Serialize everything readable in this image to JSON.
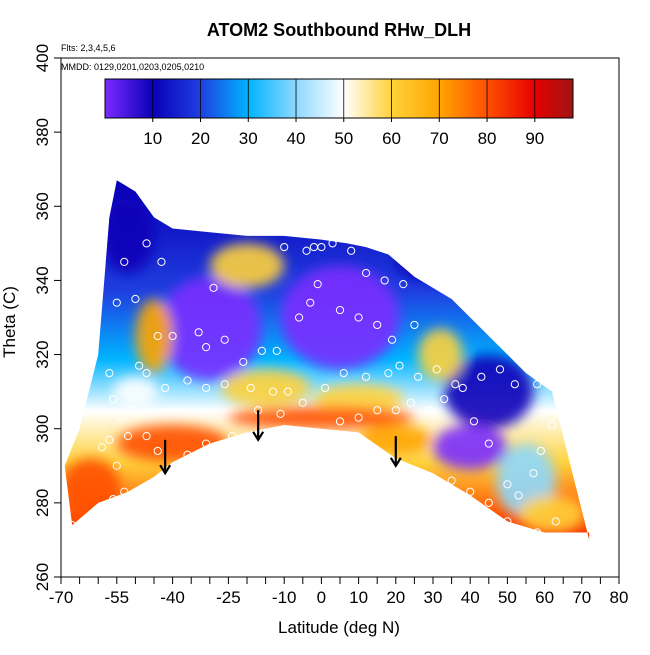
{
  "chart_data": {
    "type": "heatmap",
    "title": "ATOM2 Southbound RHw_DLH",
    "subtitle_flights": "Flts: 2,3,4,5,6",
    "subtitle_dates": "MMDD: 0129,0201,0203,0205,0210",
    "xlabel": "Latitude (deg N)",
    "ylabel": "Theta (C)",
    "xlim": [
      -70,
      80
    ],
    "ylim": [
      260,
      400
    ],
    "x_ticks": [
      -70,
      -55,
      -40,
      -25,
      -10,
      0,
      10,
      20,
      30,
      40,
      50,
      60,
      70,
      80
    ],
    "x_minor_ticks": [
      -65,
      -60,
      -50,
      -45,
      -35,
      -30,
      -20,
      -15,
      -5,
      5,
      15,
      25,
      35,
      45,
      55,
      65,
      75
    ],
    "y_ticks": [
      260,
      280,
      300,
      320,
      340,
      360,
      380,
      400
    ],
    "colorbar": {
      "range": [
        0,
        98
      ],
      "ticks": [
        10,
        20,
        30,
        40,
        50,
        60,
        70,
        80,
        90
      ],
      "stops": [
        {
          "v": 0,
          "c": "#7a2cff"
        },
        {
          "v": 10,
          "c": "#0a00b8"
        },
        {
          "v": 20,
          "c": "#1f3fe0"
        },
        {
          "v": 30,
          "c": "#00b4ff"
        },
        {
          "v": 40,
          "c": "#8ed8ff"
        },
        {
          "v": 50,
          "c": "#ffffff"
        },
        {
          "v": 60,
          "c": "#ffd23a"
        },
        {
          "v": 70,
          "c": "#ffa500"
        },
        {
          "v": 80,
          "c": "#ff5000"
        },
        {
          "v": 90,
          "c": "#e60000"
        },
        {
          "v": 98,
          "c": "#9e1414"
        }
      ]
    },
    "field_envelope": {
      "top": [
        [
          -57,
          357
        ],
        [
          -55,
          367
        ],
        [
          -50,
          364
        ],
        [
          -45,
          357
        ],
        [
          -40,
          354
        ],
        [
          -30,
          353
        ],
        [
          -20,
          352
        ],
        [
          -10,
          352
        ],
        [
          0,
          351
        ],
        [
          7,
          350
        ],
        [
          12,
          349
        ],
        [
          18,
          347
        ],
        [
          25,
          341
        ],
        [
          35,
          335
        ],
        [
          45,
          325
        ],
        [
          55,
          315
        ],
        [
          62,
          310
        ],
        [
          72,
          270
        ]
      ],
      "bottom": [
        [
          -67,
          274
        ],
        [
          -60,
          280
        ],
        [
          -52,
          283
        ],
        [
          -45,
          287
        ],
        [
          -40,
          291
        ],
        [
          -30,
          296
        ],
        [
          -20,
          299
        ],
        [
          -10,
          301
        ],
        [
          0,
          300
        ],
        [
          10,
          299
        ],
        [
          20,
          292
        ],
        [
          30,
          288
        ],
        [
          40,
          282
        ],
        [
          50,
          275
        ],
        [
          60,
          272
        ],
        [
          72,
          272
        ]
      ],
      "left_edge": [
        [
          -69,
          290
        ],
        [
          -65,
          300
        ],
        [
          -60,
          320
        ],
        [
          -57,
          357
        ]
      ]
    },
    "field_blobs": [
      {
        "x": -30,
        "y": 327,
        "rx": 14,
        "ry": 14,
        "v": 8
      },
      {
        "x": 5,
        "y": 330,
        "rx": 16,
        "ry": 14,
        "v": 5
      },
      {
        "x": 30,
        "y": 345,
        "rx": 10,
        "ry": 5,
        "v": 12
      },
      {
        "x": 45,
        "y": 310,
        "rx": 12,
        "ry": 10,
        "v": 14
      },
      {
        "x": 40,
        "y": 295,
        "rx": 10,
        "ry": 6,
        "v": 8
      },
      {
        "x": -52,
        "y": 352,
        "rx": 7,
        "ry": 10,
        "v": 12
      },
      {
        "x": -20,
        "y": 344,
        "rx": 10,
        "ry": 6,
        "v": 62
      },
      {
        "x": -45,
        "y": 325,
        "rx": 5,
        "ry": 10,
        "v": 72
      },
      {
        "x": 32,
        "y": 320,
        "rx": 6,
        "ry": 7,
        "v": 60
      },
      {
        "x": -15,
        "y": 311,
        "rx": 12,
        "ry": 5,
        "v": 66
      },
      {
        "x": 10,
        "y": 308,
        "rx": 12,
        "ry": 4,
        "v": 62
      },
      {
        "x": 0,
        "y": 303,
        "rx": 25,
        "ry": 3,
        "v": 80
      },
      {
        "x": -40,
        "y": 296,
        "rx": 15,
        "ry": 5,
        "v": 82
      },
      {
        "x": -62,
        "y": 284,
        "rx": 8,
        "ry": 8,
        "v": 88
      },
      {
        "x": 20,
        "y": 297,
        "rx": 10,
        "ry": 4,
        "v": 75
      },
      {
        "x": -50,
        "y": 310,
        "rx": 6,
        "ry": 4,
        "v": 55
      },
      {
        "x": 55,
        "y": 286,
        "rx": 8,
        "ry": 10,
        "v": 40
      },
      {
        "x": 62,
        "y": 277,
        "rx": 9,
        "ry": 5,
        "v": 63
      }
    ],
    "observation_points": [
      [
        -47,
        350
      ],
      [
        -53,
        345
      ],
      [
        -43,
        345
      ],
      [
        -29,
        338
      ],
      [
        -10,
        349
      ],
      [
        -4,
        348
      ],
      [
        -2,
        349
      ],
      [
        0,
        349
      ],
      [
        3,
        350
      ],
      [
        8,
        348
      ],
      [
        12,
        342
      ],
      [
        17,
        340
      ],
      [
        22,
        339
      ],
      [
        -1,
        339
      ],
      [
        -3,
        334
      ],
      [
        -6,
        330
      ],
      [
        5,
        332
      ],
      [
        10,
        330
      ],
      [
        15,
        328
      ],
      [
        19,
        324
      ],
      [
        25,
        328
      ],
      [
        22,
        345
      ],
      [
        -55,
        334
      ],
      [
        -50,
        335
      ],
      [
        -44,
        325
      ],
      [
        -40,
        325
      ],
      [
        -33,
        326
      ],
      [
        -31,
        322
      ],
      [
        -26,
        324
      ],
      [
        -21,
        318
      ],
      [
        -16,
        321
      ],
      [
        -12,
        321
      ],
      [
        -57,
        315
      ],
      [
        -49,
        317
      ],
      [
        -47,
        315
      ],
      [
        -42,
        311
      ],
      [
        -36,
        313
      ],
      [
        -31,
        311
      ],
      [
        -26,
        312
      ],
      [
        -19,
        311
      ],
      [
        -13,
        310
      ],
      [
        -9,
        310
      ],
      [
        1,
        311
      ],
      [
        6,
        315
      ],
      [
        12,
        314
      ],
      [
        18,
        315
      ],
      [
        21,
        317
      ],
      [
        26,
        314
      ],
      [
        31,
        316
      ],
      [
        36,
        312
      ],
      [
        -56,
        308
      ],
      [
        -54,
        303
      ],
      [
        -51,
        305
      ],
      [
        -47,
        298
      ],
      [
        -44,
        294
      ],
      [
        -36,
        293
      ],
      [
        -31,
        296
      ],
      [
        -24,
        298
      ],
      [
        -17,
        305
      ],
      [
        -11,
        304
      ],
      [
        -5,
        307
      ],
      [
        5,
        302
      ],
      [
        10,
        303
      ],
      [
        15,
        305
      ],
      [
        20,
        305
      ],
      [
        24,
        307
      ],
      [
        29,
        305
      ],
      [
        33,
        308
      ],
      [
        38,
        311
      ],
      [
        43,
        314
      ],
      [
        48,
        316
      ],
      [
        52,
        312
      ],
      [
        58,
        312
      ],
      [
        -59,
        295
      ],
      [
        -57,
        297
      ],
      [
        -52,
        298
      ],
      [
        -55,
        290
      ],
      [
        -53,
        283
      ],
      [
        -56,
        281
      ],
      [
        -61,
        276
      ],
      [
        -67,
        274
      ],
      [
        35,
        286
      ],
      [
        40,
        283
      ],
      [
        45,
        280
      ],
      [
        50,
        275
      ],
      [
        53,
        282
      ],
      [
        57,
        288
      ],
      [
        59,
        294
      ],
      [
        62,
        301
      ],
      [
        45,
        296
      ],
      [
        41,
        302
      ],
      [
        50,
        285
      ],
      [
        58,
        272
      ],
      [
        63,
        275
      ]
    ],
    "arrows": [
      {
        "x": -42,
        "y_from": 297,
        "y_to": 288
      },
      {
        "x": -17,
        "y_from": 305,
        "y_to": 297
      },
      {
        "x": 20,
        "y_from": 298,
        "y_to": 290
      }
    ]
  }
}
